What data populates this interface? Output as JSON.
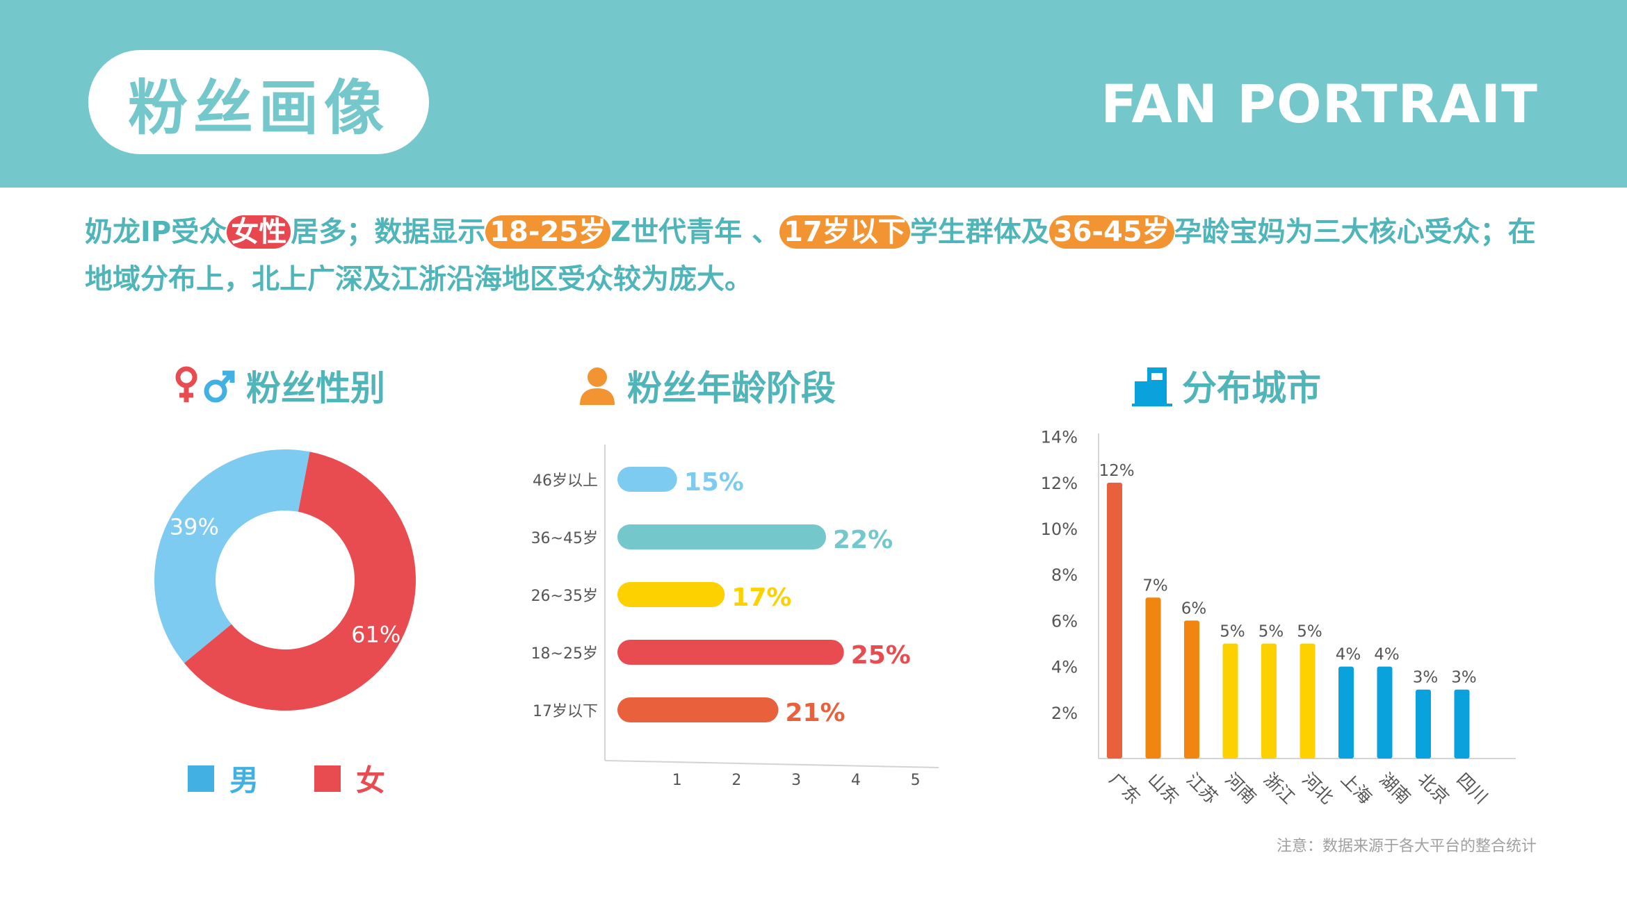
{
  "header": {
    "title_cn": "粉丝画像",
    "title_en": "FAN PORTRAIT"
  },
  "summary": {
    "t1": "奶龙IP受众",
    "h1": "女性",
    "t2": "居多；数据显示",
    "h2": "18-25岁",
    "t3": "Z世代青年 、",
    "h3": "17岁以下",
    "t4": "学生群体及",
    "h4": "36-45岁",
    "t5": "孕龄宝妈为三大核心受众；在地域分布上，北上广深及江浙沿海地区受众较为庞大。"
  },
  "sections": {
    "gender": "粉丝性别",
    "age": "粉丝年龄阶段",
    "city": "分布城市"
  },
  "colors": {
    "teal": "#74c7ca",
    "male": "#7ecbf1",
    "female": "#e84c51",
    "orange": "#f29432",
    "red_orange": "#e9603d",
    "yellow": "#fdd100",
    "blue": "#0aa2dd"
  },
  "note": "注意：数据来源于各大平台的整合统计",
  "chart_data": [
    {
      "type": "pie",
      "variant": "donut",
      "categories": [
        "男",
        "女"
      ],
      "values": [
        39,
        61
      ],
      "labels": [
        "39%",
        "61%"
      ],
      "colors": [
        "#7ecbf1",
        "#e84c51"
      ],
      "legend": [
        {
          "label": "男",
          "color": "#41b0e2"
        },
        {
          "label": "女",
          "color": "#e84c51"
        }
      ],
      "legend_position": "bottom"
    },
    {
      "type": "bar",
      "orientation": "horizontal",
      "categories": [
        "46岁以上",
        "36~45岁",
        "26~35岁",
        "18~25岁",
        "17岁以下"
      ],
      "values": [
        1.0,
        3.5,
        1.8,
        3.8,
        2.7
      ],
      "labels": [
        "15%",
        "22%",
        "17%",
        "25%",
        "21%"
      ],
      "colors": [
        "#7ecbf1",
        "#74c7ca",
        "#fdd100",
        "#e84c51",
        "#e9603d"
      ],
      "xticks": [
        "1",
        "2",
        "3",
        "4",
        "5"
      ],
      "xlim": [
        0,
        5.6
      ]
    },
    {
      "type": "bar",
      "orientation": "vertical",
      "categories": [
        "广东",
        "山东",
        "江苏",
        "河南",
        "浙江",
        "河北",
        "上海",
        "湖南",
        "北京",
        "四川"
      ],
      "values": [
        12,
        7,
        6,
        5,
        5,
        5,
        4,
        4,
        3,
        3
      ],
      "labels": [
        "12%",
        "7%",
        "6%",
        "5%",
        "5%",
        "5%",
        "4%",
        "4%",
        "3%",
        "3%"
      ],
      "colors": [
        "#e9603d",
        "#f0850f",
        "#f0850f",
        "#fdd100",
        "#fdd100",
        "#fdd100",
        "#0aa2dd",
        "#0aa2dd",
        "#0aa2dd",
        "#0aa2dd"
      ],
      "yticks": [
        "2%",
        "4%",
        "6%",
        "8%",
        "10%",
        "12%",
        "14%"
      ],
      "ylim": [
        0,
        14.2
      ]
    }
  ]
}
